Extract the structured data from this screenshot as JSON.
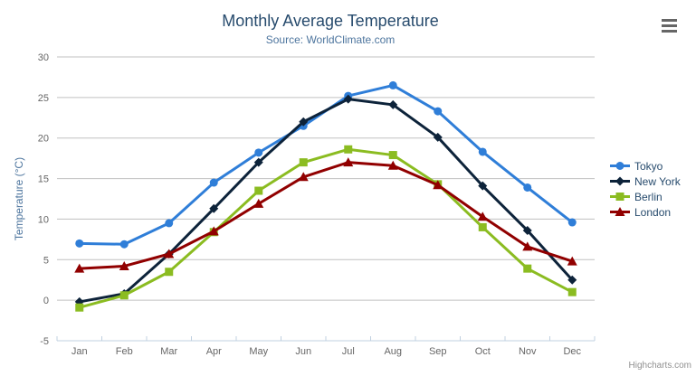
{
  "chart_data": {
    "type": "line",
    "title": "Monthly Average Temperature",
    "subtitle": "Source: WorldClimate.com",
    "categories": [
      "Jan",
      "Feb",
      "Mar",
      "Apr",
      "May",
      "Jun",
      "Jul",
      "Aug",
      "Sep",
      "Oct",
      "Nov",
      "Dec"
    ],
    "xlabel": "",
    "ylabel": "Temperature (°C)",
    "ylim": [
      -5,
      30
    ],
    "ytick_step": 5,
    "grid": true,
    "legend_position": "right",
    "series": [
      {
        "name": "Tokyo",
        "color": "#2f7ed8",
        "marker": "circle",
        "values": [
          7.0,
          6.9,
          9.5,
          14.5,
          18.2,
          21.5,
          25.2,
          26.5,
          23.3,
          18.3,
          13.9,
          9.6
        ]
      },
      {
        "name": "New York",
        "color": "#0d233a",
        "marker": "diamond",
        "values": [
          -0.2,
          0.8,
          5.7,
          11.3,
          17.0,
          22.0,
          24.8,
          24.1,
          20.1,
          14.1,
          8.6,
          2.5
        ]
      },
      {
        "name": "Berlin",
        "color": "#8bbc21",
        "marker": "square",
        "values": [
          -0.9,
          0.6,
          3.5,
          8.4,
          13.5,
          17.0,
          18.6,
          17.9,
          14.3,
          9.0,
          3.9,
          1.0
        ]
      },
      {
        "name": "London",
        "color": "#910000",
        "marker": "triangle",
        "values": [
          3.9,
          4.2,
          5.7,
          8.5,
          11.9,
          15.2,
          17.0,
          16.6,
          14.2,
          10.3,
          6.6,
          4.8
        ]
      }
    ],
    "colors": {
      "title": "#274b6d",
      "subtitle": "#4d759e",
      "axis_title": "#4d759e",
      "axis_label": "#666666",
      "grid_line": "#c0c0c0",
      "axis_line": "#c0d0e0",
      "legend_text": "#274b6d",
      "credits": "#909090"
    }
  },
  "export_menu": {
    "icon": "hamburger-menu"
  },
  "credits": {
    "label": "Highcharts.com"
  }
}
